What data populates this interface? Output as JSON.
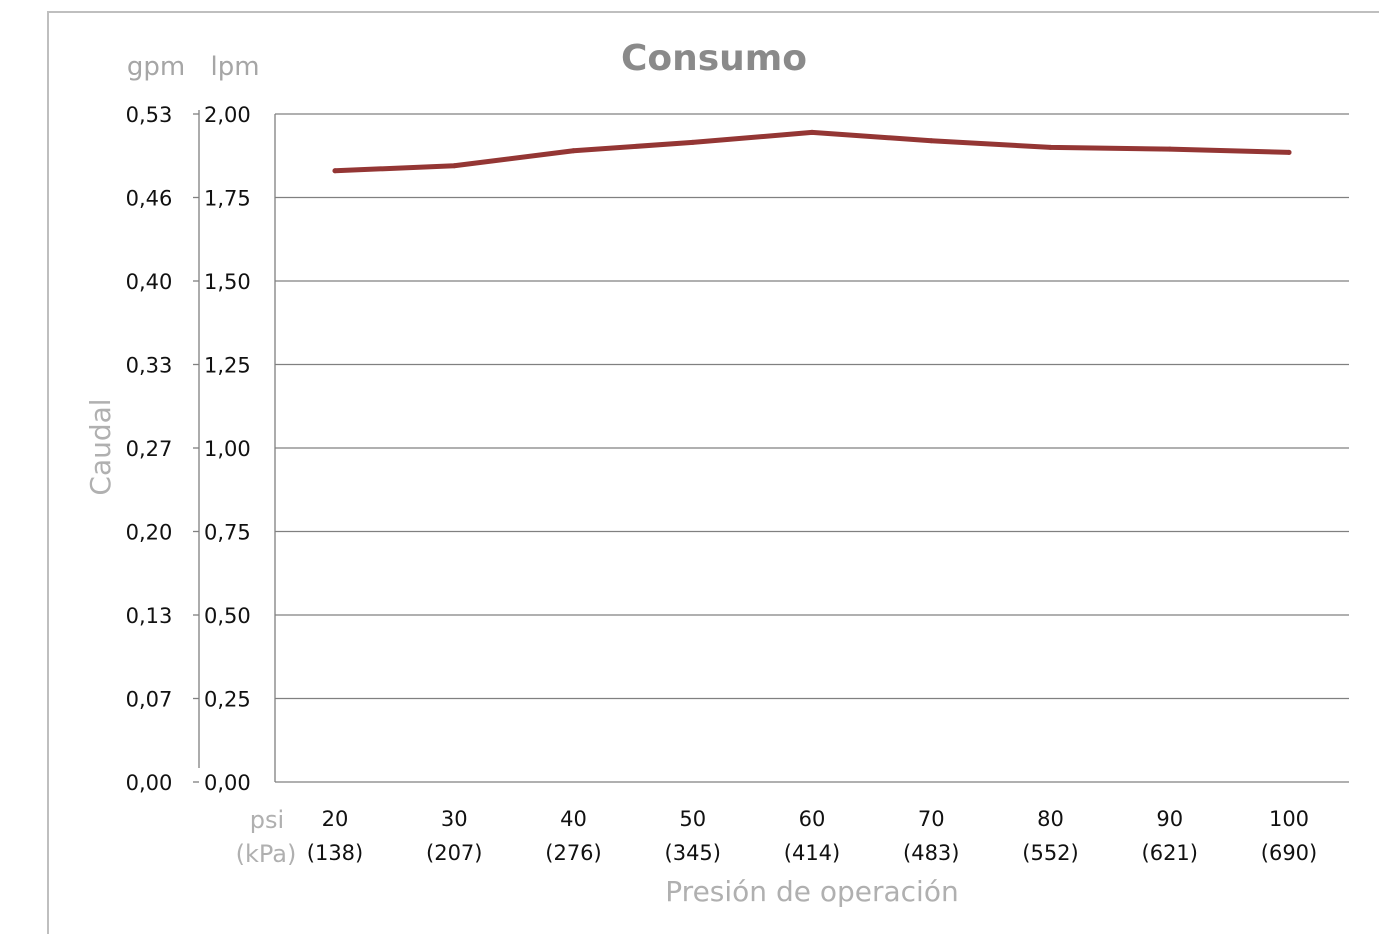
{
  "chart_data": {
    "type": "line",
    "title": "Consumo",
    "ylabel": "Caudal",
    "xlabel": "Presión de operación",
    "y_units": {
      "left": "gpm",
      "right": "lpm"
    },
    "x_units": {
      "primary": "psi",
      "secondary": "(kPa)"
    },
    "categories": [
      "20",
      "30",
      "40",
      "50",
      "60",
      "70",
      "80",
      "90",
      "100"
    ],
    "categories_secondary": [
      "(138)",
      "(207)",
      "(276)",
      "(345)",
      "(414)",
      "(483)",
      "(552)",
      "(621)",
      "(690)"
    ],
    "y_ticks_lpm": [
      "0,00",
      "0,25",
      "0,50",
      "0,75",
      "1,00",
      "1,25",
      "1,50",
      "1,75",
      "2,00"
    ],
    "y_ticks_gpm": [
      "0,00",
      "0,07",
      "0,13",
      "0,20",
      "0,27",
      "0,33",
      "0,40",
      "0,46",
      "0,53"
    ],
    "ylim": [
      0,
      2.0
    ],
    "grid": true,
    "series": [
      {
        "values": [
          1.83,
          1.845,
          1.89,
          1.915,
          1.945,
          1.92,
          1.9,
          1.895,
          1.885
        ],
        "color": "#943634"
      }
    ]
  }
}
